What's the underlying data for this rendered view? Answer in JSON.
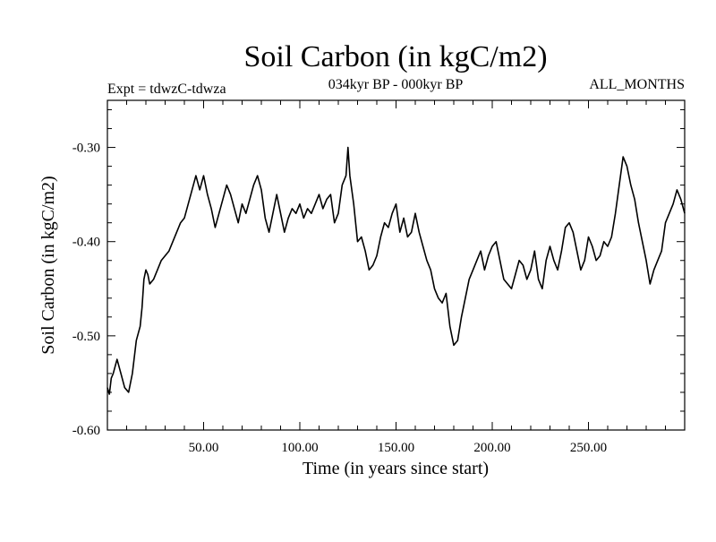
{
  "chart_data": {
    "type": "line",
    "title": "Soil Carbon (in kgC/m2)",
    "subtitle_left": "Expt = tdwzC-tdwza",
    "subtitle_center": "034kyr BP - 000kyr BP",
    "subtitle_right": "ALL_MONTHS",
    "xlabel": "Time (in years since start)",
    "ylabel": "Soil Carbon (in kgC/m2)",
    "xlim": [
      0,
      300
    ],
    "ylim": [
      -0.6,
      -0.25
    ],
    "x_ticks": [
      50,
      100,
      150,
      200,
      250
    ],
    "x_tick_labels": [
      "50.00",
      "100.00",
      "150.00",
      "200.00",
      "250.00"
    ],
    "y_ticks": [
      -0.6,
      -0.5,
      -0.4,
      -0.3
    ],
    "y_tick_labels": [
      "-0.60",
      "-0.50",
      "-0.40",
      "-0.30"
    ],
    "grid": false,
    "line_color": "#000000",
    "series": [
      {
        "x": [
          0,
          1,
          2,
          3,
          5,
          7,
          9,
          11,
          13,
          15,
          17,
          18,
          19,
          20,
          21,
          22,
          24,
          26,
          28,
          30,
          32,
          34,
          36,
          38,
          40,
          42,
          44,
          46,
          48,
          50,
          52,
          54,
          56,
          58,
          60,
          62,
          64,
          66,
          68,
          70,
          72,
          74,
          76,
          78,
          80,
          82,
          84,
          86,
          88,
          90,
          92,
          94,
          96,
          98,
          100,
          102,
          104,
          106,
          108,
          110,
          112,
          114,
          116,
          118,
          120,
          122,
          124,
          125,
          126,
          128,
          130,
          132,
          134,
          136,
          138,
          140,
          142,
          144,
          146,
          148,
          150,
          152,
          154,
          156,
          158,
          160,
          162,
          164,
          166,
          168,
          170,
          172,
          174,
          176,
          178,
          180,
          182,
          184,
          186,
          188,
          190,
          192,
          194,
          196,
          198,
          200,
          202,
          204,
          206,
          208,
          210,
          212,
          214,
          216,
          218,
          220,
          222,
          224,
          226,
          228,
          230,
          232,
          234,
          236,
          238,
          240,
          242,
          244,
          246,
          248,
          250,
          252,
          254,
          256,
          258,
          260,
          262,
          264,
          266,
          268,
          270,
          272,
          274,
          276,
          278,
          280,
          282,
          284,
          286,
          288,
          290,
          292,
          294,
          296,
          298,
          300
        ],
        "y": [
          -0.555,
          -0.562,
          -0.545,
          -0.54,
          -0.525,
          -0.54,
          -0.555,
          -0.56,
          -0.54,
          -0.505,
          -0.49,
          -0.47,
          -0.44,
          -0.43,
          -0.435,
          -0.445,
          -0.44,
          -0.43,
          -0.42,
          -0.415,
          -0.41,
          -0.4,
          -0.39,
          -0.38,
          -0.375,
          -0.36,
          -0.345,
          -0.33,
          -0.345,
          -0.33,
          -0.35,
          -0.365,
          -0.385,
          -0.37,
          -0.355,
          -0.34,
          -0.35,
          -0.365,
          -0.38,
          -0.36,
          -0.37,
          -0.355,
          -0.34,
          -0.33,
          -0.345,
          -0.375,
          -0.39,
          -0.37,
          -0.35,
          -0.37,
          -0.39,
          -0.375,
          -0.365,
          -0.37,
          -0.36,
          -0.375,
          -0.365,
          -0.37,
          -0.36,
          -0.35,
          -0.365,
          -0.355,
          -0.35,
          -0.38,
          -0.37,
          -0.34,
          -0.33,
          -0.3,
          -0.33,
          -0.36,
          -0.4,
          -0.395,
          -0.41,
          -0.43,
          -0.425,
          -0.415,
          -0.395,
          -0.38,
          -0.385,
          -0.37,
          -0.36,
          -0.39,
          -0.375,
          -0.395,
          -0.39,
          -0.37,
          -0.39,
          -0.405,
          -0.42,
          -0.43,
          -0.45,
          -0.46,
          -0.465,
          -0.455,
          -0.49,
          -0.51,
          -0.505,
          -0.48,
          -0.46,
          -0.44,
          -0.43,
          -0.42,
          -0.41,
          -0.43,
          -0.415,
          -0.405,
          -0.4,
          -0.42,
          -0.44,
          -0.445,
          -0.45,
          -0.435,
          -0.42,
          -0.425,
          -0.44,
          -0.43,
          -0.41,
          -0.44,
          -0.45,
          -0.42,
          -0.405,
          -0.42,
          -0.43,
          -0.41,
          -0.385,
          -0.38,
          -0.39,
          -0.41,
          -0.43,
          -0.42,
          -0.395,
          -0.405,
          -0.42,
          -0.415,
          -0.4,
          -0.405,
          -0.395,
          -0.37,
          -0.34,
          -0.31,
          -0.32,
          -0.34,
          -0.355,
          -0.38,
          -0.4,
          -0.42,
          -0.445,
          -0.43,
          -0.42,
          -0.41,
          -0.38,
          -0.37,
          -0.36,
          -0.345,
          -0.355,
          -0.37
        ]
      }
    ]
  }
}
